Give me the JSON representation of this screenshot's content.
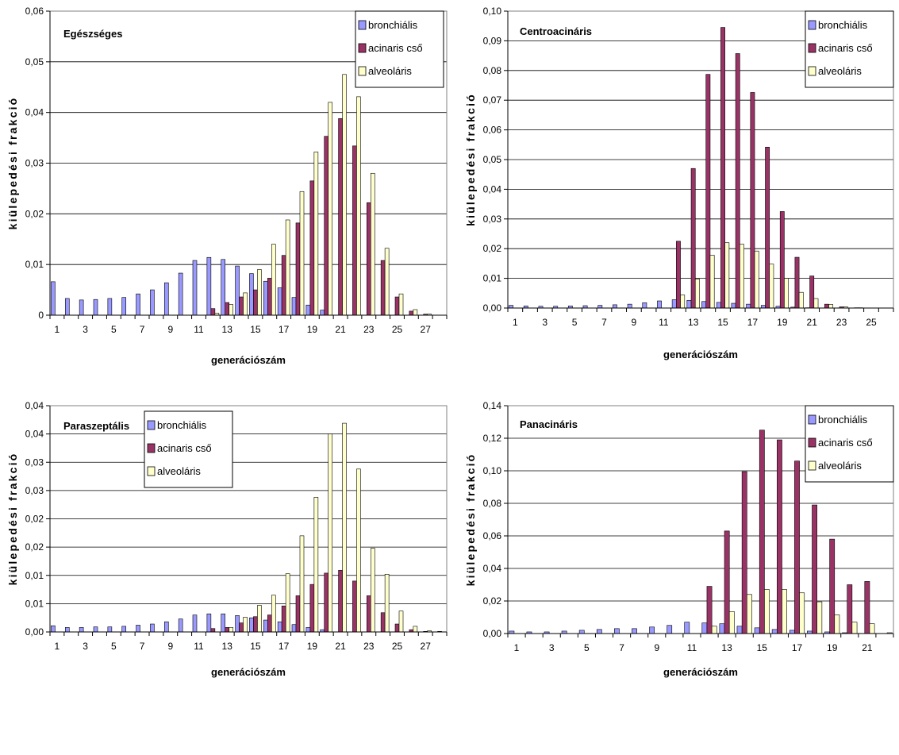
{
  "colors": {
    "bronchial": "#9999ff",
    "acinar": "#993366",
    "alveolar": "#ffffcc",
    "border": "#000000",
    "grid": "#000000"
  },
  "chart_data": [
    {
      "type": "bar",
      "title": "Egészséges",
      "xlabel": "generációszám",
      "ylabel": "kiülepedési frakció",
      "ylim": [
        0,
        0.06
      ],
      "yticks": [
        "0",
        "0,01",
        "0,02",
        "0,03",
        "0,04",
        "0,05",
        "0,06"
      ],
      "xticks": [
        "1",
        "3",
        "5",
        "7",
        "9",
        "11",
        "13",
        "15",
        "17",
        "19",
        "21",
        "23",
        "25",
        "27"
      ],
      "grid": true,
      "legend_position": "top-right",
      "categories": [
        1,
        2,
        3,
        4,
        5,
        6,
        7,
        8,
        9,
        10,
        11,
        12,
        13,
        14,
        15,
        16,
        17,
        18,
        19,
        20,
        21,
        22,
        23,
        24,
        25,
        26,
        27,
        28
      ],
      "series": [
        {
          "name": "bronchiális",
          "values": [
            0.0066,
            0.0033,
            0.003,
            0.0031,
            0.0033,
            0.0035,
            0.0042,
            0.005,
            0.0064,
            0.0083,
            0.0108,
            0.0114,
            0.011,
            0.0097,
            0.0082,
            0.0067,
            0.0054,
            0.0035,
            0.002,
            0.001,
            0,
            0,
            0,
            0,
            0,
            0,
            0,
            0
          ]
        },
        {
          "name": "acinaris cső",
          "values": [
            0,
            0,
            0,
            0,
            0,
            0,
            0,
            0,
            0,
            0,
            0,
            0.0013,
            0.0025,
            0.0036,
            0.005,
            0.0073,
            0.0118,
            0.0182,
            0.0265,
            0.0353,
            0.0388,
            0.0334,
            0.0222,
            0.0108,
            0.0036,
            0.0008,
            0.0002,
            0
          ]
        },
        {
          "name": "alveoláris",
          "values": [
            0,
            0,
            0,
            0,
            0,
            0,
            0,
            0,
            0,
            0,
            0,
            0.0004,
            0.0021,
            0.0044,
            0.009,
            0.014,
            0.0188,
            0.0244,
            0.0322,
            0.042,
            0.0475,
            0.0431,
            0.028,
            0.0132,
            0.0042,
            0.0011,
            0.0002,
            0
          ]
        }
      ]
    },
    {
      "type": "bar",
      "title": "Centroacináris",
      "xlabel": "generációszám",
      "ylabel": "kiülepedési frakció",
      "ylim": [
        0,
        0.1
      ],
      "yticks": [
        "0,00",
        "0,01",
        "0,02",
        "0,03",
        "0,04",
        "0,05",
        "0,06",
        "0,07",
        "0,08",
        "0,09",
        "0,10"
      ],
      "xticks": [
        "1",
        "3",
        "5",
        "7",
        "9",
        "11",
        "13",
        "15",
        "17",
        "19",
        "21",
        "23",
        "25"
      ],
      "grid": true,
      "legend_position": "top-right",
      "categories": [
        1,
        2,
        3,
        4,
        5,
        6,
        7,
        8,
        9,
        10,
        11,
        12,
        13,
        14,
        15,
        16,
        17,
        18,
        19,
        20,
        21,
        22,
        23,
        24,
        25,
        26
      ],
      "series": [
        {
          "name": "bronchiális",
          "values": [
            0.0009,
            0.0007,
            0.0006,
            0.0006,
            0.0007,
            0.0008,
            0.0009,
            0.0011,
            0.0013,
            0.0018,
            0.0024,
            0.0028,
            0.0026,
            0.0022,
            0.0019,
            0.0016,
            0.0013,
            0.0009,
            0.0006,
            0.0003,
            0.0001,
            0,
            0,
            0,
            0,
            0
          ]
        },
        {
          "name": "acinaris cső",
          "values": [
            0,
            0,
            0,
            0,
            0,
            0,
            0,
            0,
            0,
            0,
            0,
            0.0225,
            0.047,
            0.0787,
            0.0945,
            0.0857,
            0.0726,
            0.0542,
            0.0325,
            0.0171,
            0.0108,
            0.0013,
            0.0004,
            0.0001,
            0,
            0
          ]
        },
        {
          "name": "alveoláris",
          "values": [
            0,
            0,
            0,
            0,
            0,
            0,
            0,
            0,
            0,
            0,
            0,
            0.0044,
            0.0098,
            0.0178,
            0.022,
            0.0215,
            0.0192,
            0.0148,
            0.01,
            0.0053,
            0.0032,
            0.0012,
            0.0004,
            0.0001,
            0,
            0
          ]
        }
      ]
    },
    {
      "type": "bar",
      "title": "Paraszeptális",
      "xlabel": "generációszám",
      "ylabel": "kiülepedési frakció",
      "ylim": [
        0,
        0.04
      ],
      "yticks": [
        "0,00",
        "0,01",
        "0,01",
        "0,02",
        "0,02",
        "0,03",
        "0,03",
        "0,04",
        "0,04"
      ],
      "xticks": [
        "1",
        "3",
        "5",
        "7",
        "9",
        "11",
        "13",
        "15",
        "17",
        "19",
        "21",
        "23",
        "25",
        "27"
      ],
      "grid": true,
      "legend_position": "top-center",
      "categories": [
        1,
        2,
        3,
        4,
        5,
        6,
        7,
        8,
        9,
        10,
        11,
        12,
        13,
        14,
        15,
        16,
        17,
        18,
        19,
        20,
        21,
        22,
        23,
        24,
        25,
        26,
        27,
        28
      ],
      "series": [
        {
          "name": "bronchiális",
          "values": [
            0.0011,
            0.0008,
            0.0008,
            0.0009,
            0.0009,
            0.001,
            0.0012,
            0.0014,
            0.0018,
            0.0023,
            0.003,
            0.0032,
            0.0032,
            0.0029,
            0.0025,
            0.0021,
            0.0018,
            0.0013,
            0.0008,
            0.0004,
            0,
            0,
            0,
            0,
            0,
            0,
            0,
            0
          ]
        },
        {
          "name": "acinaris cső",
          "values": [
            0,
            0,
            0,
            0,
            0,
            0,
            0,
            0,
            0,
            0,
            0,
            0.0006,
            0.0008,
            0.0016,
            0.0027,
            0.003,
            0.0046,
            0.0064,
            0.0084,
            0.0104,
            0.0109,
            0.009,
            0.0064,
            0.0034,
            0.0014,
            0.0004,
            0.0001,
            0.0001
          ]
        },
        {
          "name": "alveoláris",
          "values": [
            0,
            0,
            0,
            0,
            0,
            0,
            0,
            0,
            0,
            0,
            0,
            0,
            0.0008,
            0.0026,
            0.0047,
            0.0065,
            0.0103,
            0.017,
            0.0238,
            0.035,
            0.0369,
            0.0288,
            0.0148,
            0.0102,
            0.0037,
            0.001,
            0.0002,
            0
          ]
        }
      ]
    },
    {
      "type": "bar",
      "title": "Panacináris",
      "xlabel": "generációszám",
      "ylabel": "kiülepedési frakció",
      "ylim": [
        0,
        0.14
      ],
      "yticks": [
        "0,00",
        "0,02",
        "0,04",
        "0,06",
        "0,08",
        "0,10",
        "0,12",
        "0,14"
      ],
      "xticks": [
        "1",
        "3",
        "5",
        "7",
        "9",
        "11",
        "13",
        "15",
        "17",
        "19",
        "21"
      ],
      "grid": true,
      "legend_position": "top-right",
      "categories": [
        1,
        2,
        3,
        4,
        5,
        6,
        7,
        8,
        9,
        10,
        11,
        12,
        13,
        14,
        15,
        16,
        17,
        18,
        19,
        20,
        21,
        22
      ],
      "series": [
        {
          "name": "bronchiális",
          "values": [
            0.0015,
            0.001,
            0.001,
            0.0015,
            0.002,
            0.0025,
            0.003,
            0.003,
            0.004,
            0.005,
            0.007,
            0.0065,
            0.006,
            0.0045,
            0.0035,
            0.0025,
            0.002,
            0.0015,
            0.001,
            0.0005,
            0,
            0
          ]
        },
        {
          "name": "acinaris cső",
          "values": [
            0,
            0,
            0,
            0,
            0,
            0,
            0,
            0,
            0,
            0,
            0,
            0.029,
            0.063,
            0.0995,
            0.125,
            0.119,
            0.106,
            0.079,
            0.058,
            0.03,
            0.032,
            0
          ]
        },
        {
          "name": "alveoláris",
          "values": [
            0,
            0,
            0,
            0,
            0,
            0,
            0,
            0,
            0,
            0,
            0,
            0.0045,
            0.0135,
            0.024,
            0.027,
            0.027,
            0.025,
            0.0195,
            0.0115,
            0.007,
            0.006,
            0.0005
          ]
        }
      ]
    }
  ]
}
